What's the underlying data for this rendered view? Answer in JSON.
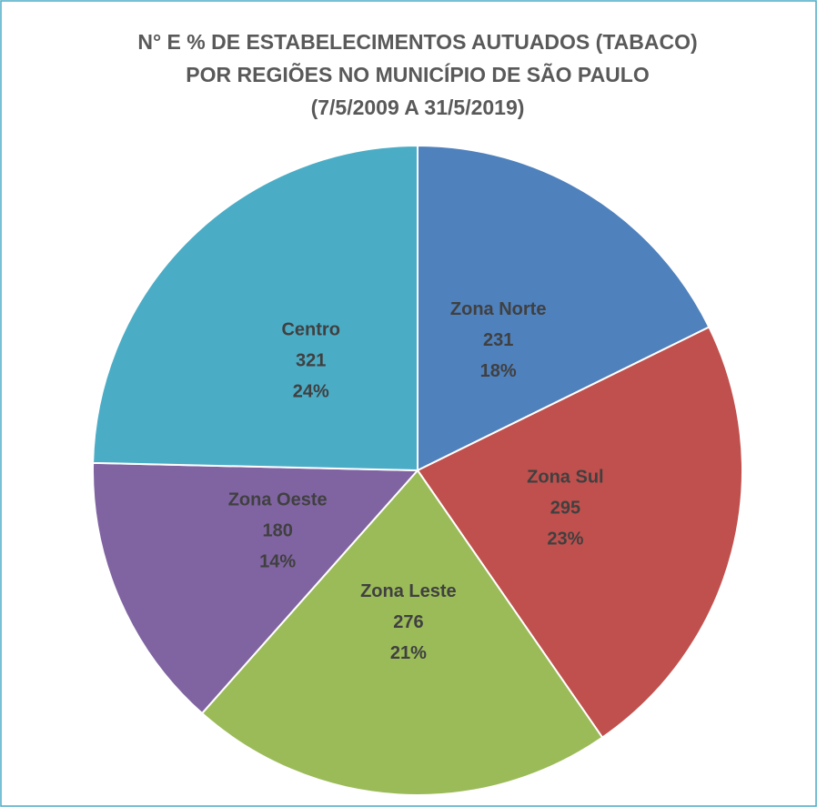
{
  "chart_data": {
    "type": "pie",
    "title": [
      "N° E % DE ESTABELECIMENTOS AUTUADOS (TABACO)",
      "POR REGIÕES NO MUNICÍPIO DE SÃO PAULO",
      "(7/5/2009  A 31/5/2019)"
    ],
    "categories": [
      "Zona Norte",
      "Zona Sul",
      "Zona Leste",
      "Zona Oeste",
      "Centro"
    ],
    "values": [
      231,
      295,
      276,
      180,
      321
    ],
    "percent_labels": [
      "18%",
      "23%",
      "21%",
      "14%",
      "24%"
    ],
    "colors": [
      "#4f81bd",
      "#c0504d",
      "#9bbb59",
      "#8064a2",
      "#4bacc6"
    ]
  }
}
